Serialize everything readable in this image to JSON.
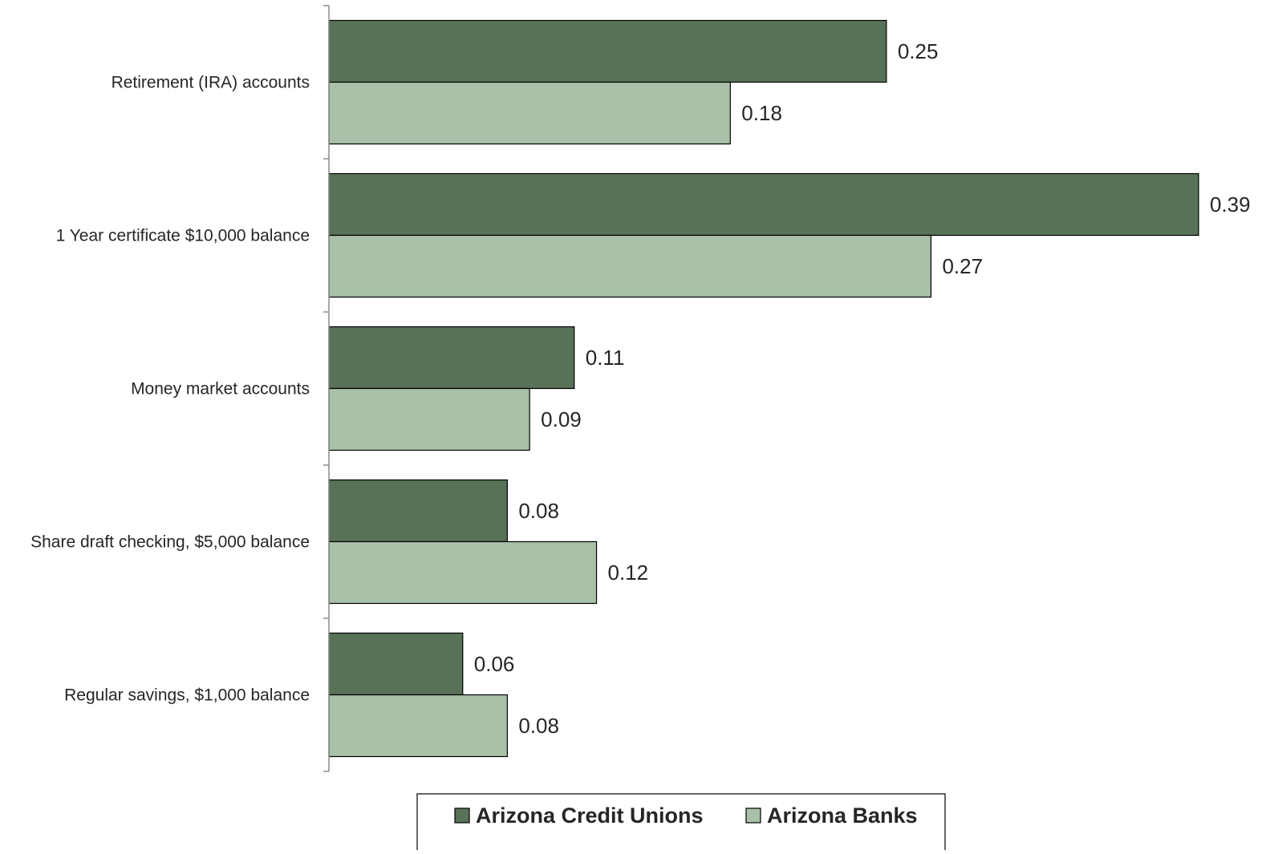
{
  "chart_data": {
    "type": "bar",
    "orientation": "horizontal",
    "categories": [
      "Retirement (IRA) accounts",
      "1 Year certificate $10,000 balance",
      "Money market accounts",
      "Share draft checking, $5,000 balance",
      "Regular savings, $1,000 balance"
    ],
    "series": [
      {
        "name": "Arizona Credit Unions",
        "color": "#587258",
        "values": [
          0.25,
          0.39,
          0.11,
          0.08,
          0.06
        ]
      },
      {
        "name": "Arizona Banks",
        "color": "#a8c1a8",
        "values": [
          0.18,
          0.27,
          0.09,
          0.12,
          0.08
        ]
      }
    ],
    "value_labels": [
      [
        "0.25",
        "0.39",
        "0.11",
        "0.08",
        "0.06"
      ],
      [
        "0.18",
        "0.27",
        "0.09",
        "0.12",
        "0.08"
      ]
    ],
    "xlim": [
      0,
      0.39
    ],
    "grid": false,
    "legend_position": "bottom"
  }
}
